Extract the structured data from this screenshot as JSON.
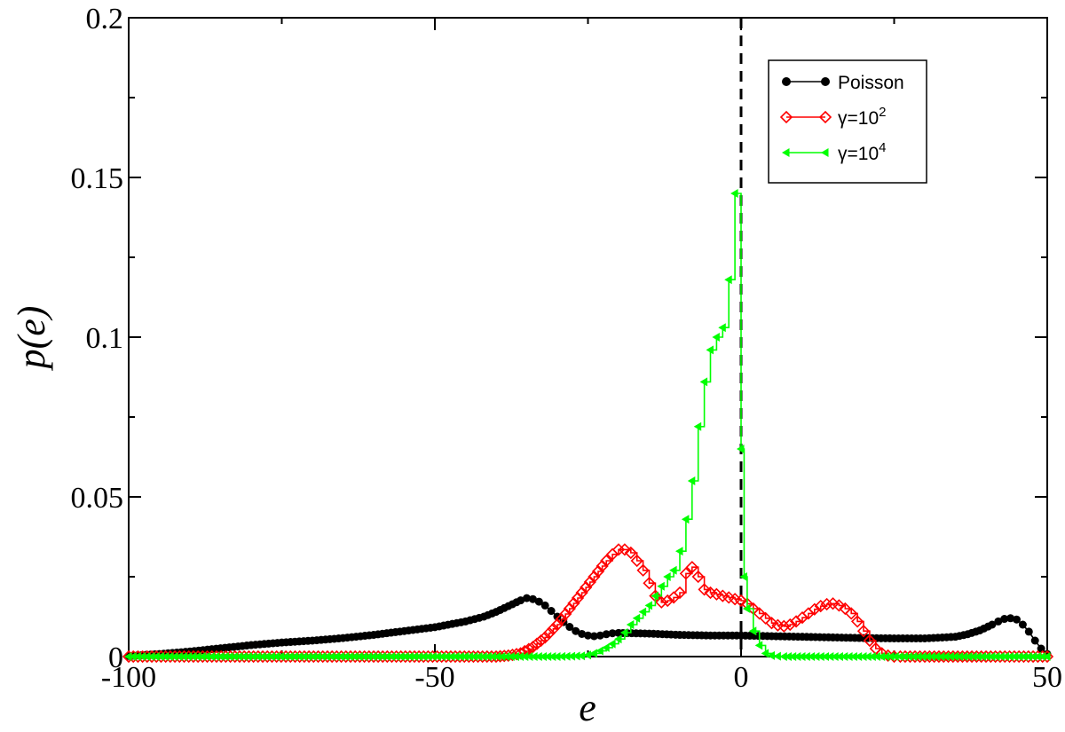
{
  "chart_data": {
    "type": "line",
    "title": "",
    "xlabel": "e",
    "ylabel": "p(e)",
    "xlim": [
      -100,
      50
    ],
    "ylim": [
      0,
      0.2
    ],
    "xticks": [
      -100,
      -50,
      0,
      50
    ],
    "yticks": [
      0,
      0.05,
      0.1,
      0.15,
      0.2
    ],
    "xtick_labels": [
      "-100",
      "-50",
      "0",
      "50"
    ],
    "ytick_labels": [
      "0",
      "0.05",
      "0.1",
      "0.15",
      "0.2"
    ],
    "grid": false,
    "legend_position": "top-right",
    "reference_line": {
      "x": 0,
      "style": "dashed",
      "color": "#000000"
    },
    "series": [
      {
        "name": "Poisson",
        "legend_label": "Poisson",
        "color": "#000000",
        "marker": "filled-circle",
        "step": false,
        "x": [
          -100,
          -95,
          -90,
          -85,
          -80,
          -75,
          -70,
          -65,
          -60,
          -55,
          -50,
          -45,
          -42,
          -40,
          -38,
          -36,
          -35,
          -34,
          -33,
          -32,
          -31,
          -30,
          -29,
          -28,
          -27,
          -26,
          -25,
          -24,
          -23,
          -22,
          -21,
          -20,
          -15,
          -10,
          -5,
          0,
          5,
          10,
          15,
          20,
          25,
          30,
          35,
          37,
          39,
          41,
          42,
          43,
          44,
          45,
          46,
          47,
          48,
          49,
          50
        ],
        "y": [
          0.0002,
          0.0008,
          0.0016,
          0.0026,
          0.0036,
          0.0044,
          0.005,
          0.0058,
          0.0068,
          0.008,
          0.0092,
          0.011,
          0.0125,
          0.014,
          0.0158,
          0.0176,
          0.0183,
          0.018,
          0.0172,
          0.016,
          0.0143,
          0.0125,
          0.0108,
          0.0093,
          0.008,
          0.0071,
          0.0066,
          0.0064,
          0.0066,
          0.007,
          0.0073,
          0.0074,
          0.0072,
          0.0068,
          0.0066,
          0.0066,
          0.0064,
          0.0062,
          0.006,
          0.0058,
          0.0057,
          0.0057,
          0.0062,
          0.007,
          0.0082,
          0.01,
          0.011,
          0.0118,
          0.012,
          0.0116,
          0.01,
          0.0078,
          0.005,
          0.0025,
          0.0008
        ]
      },
      {
        "name": "γ=10^2",
        "legend_label": "γ=10",
        "legend_exponent": "2",
        "color": "#ff0000",
        "marker": "open-diamond",
        "step": true,
        "x": [
          -100,
          -60,
          -40,
          -38,
          -36,
          -34,
          -32,
          -30,
          -28,
          -26,
          -24,
          -22,
          -21,
          -20,
          -19,
          -18,
          -17,
          -16,
          -15,
          -14,
          -13,
          -12,
          -11,
          -10,
          -9,
          -8,
          -7,
          -6,
          -5,
          -4,
          -3,
          -2,
          -1,
          0,
          1,
          2,
          3,
          4,
          5,
          6,
          7,
          8,
          9,
          10,
          11,
          12,
          13,
          14,
          15,
          16,
          17,
          18,
          19,
          20,
          21,
          22,
          23,
          24,
          25,
          26,
          30,
          40,
          50
        ],
        "y": [
          0,
          0,
          0,
          0.0003,
          0.001,
          0.003,
          0.006,
          0.01,
          0.015,
          0.02,
          0.025,
          0.03,
          0.032,
          0.0335,
          0.0335,
          0.0325,
          0.03,
          0.027,
          0.023,
          0.019,
          0.017,
          0.0175,
          0.0185,
          0.02,
          0.026,
          0.028,
          0.025,
          0.021,
          0.02,
          0.0195,
          0.019,
          0.0185,
          0.018,
          0.0175,
          0.0165,
          0.015,
          0.0135,
          0.012,
          0.0105,
          0.0098,
          0.0095,
          0.01,
          0.011,
          0.0122,
          0.0135,
          0.0148,
          0.0158,
          0.0164,
          0.0166,
          0.016,
          0.015,
          0.0135,
          0.011,
          0.008,
          0.005,
          0.0025,
          0.001,
          0.0003,
          0,
          0,
          0,
          0,
          0
        ]
      },
      {
        "name": "γ=10^4",
        "legend_label": "γ=10",
        "legend_exponent": "4",
        "color": "#00ff00",
        "marker": "filled-left-triangle",
        "step": true,
        "x": [
          -100,
          -60,
          -30,
          -26,
          -25,
          -24,
          -23,
          -22,
          -21,
          -20,
          -19,
          -18,
          -17,
          -16,
          -15,
          -14,
          -13,
          -12,
          -11,
          -10,
          -9,
          -8,
          -7,
          -6,
          -5,
          -4,
          -3,
          -2,
          -1,
          0,
          0.5,
          1,
          2,
          3,
          4,
          5,
          6,
          7,
          10,
          20,
          50
        ],
        "y": [
          0,
          0,
          0,
          0.0002,
          0.0005,
          0.001,
          0.0018,
          0.0028,
          0.004,
          0.0055,
          0.0075,
          0.01,
          0.012,
          0.014,
          0.016,
          0.019,
          0.022,
          0.025,
          0.027,
          0.033,
          0.043,
          0.055,
          0.072,
          0.086,
          0.096,
          0.1,
          0.103,
          0.118,
          0.145,
          0.065,
          0.025,
          0.015,
          0.008,
          0.0035,
          0.001,
          0.0003,
          0.0001,
          0,
          0,
          0,
          0
        ]
      }
    ]
  }
}
